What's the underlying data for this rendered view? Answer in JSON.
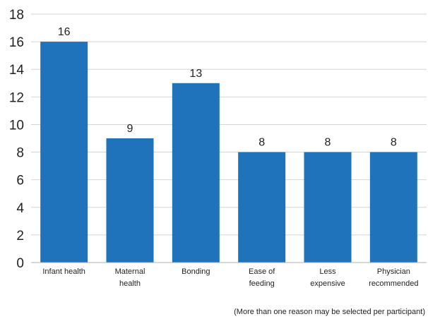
{
  "chart_data": {
    "type": "bar",
    "title": "",
    "xlabel": "",
    "ylabel": "",
    "categories": [
      [
        "Infant health"
      ],
      [
        "Maternal",
        "health"
      ],
      [
        "Bonding"
      ],
      [
        "Ease of",
        "feeding"
      ],
      [
        "Less",
        "expensive"
      ],
      [
        "Physician",
        "recommended"
      ]
    ],
    "values": [
      16,
      9,
      13,
      8,
      8,
      8
    ],
    "data_labels": [
      "16",
      "9",
      "13",
      "8",
      "8",
      "8"
    ],
    "ylim": [
      0,
      18
    ],
    "yticks": [
      0,
      2,
      4,
      6,
      8,
      10,
      12,
      14,
      16,
      18
    ],
    "grid": true,
    "legend": "none",
    "bar_color": "#1f73ba",
    "grid_color": "#d4d4d4",
    "axis_color": "#b0b0b0",
    "text_color": "#222222"
  },
  "footnote": "(More than one reason may be selected per participant)"
}
